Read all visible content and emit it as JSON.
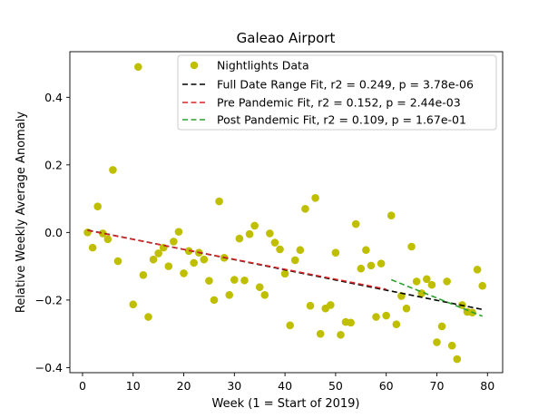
{
  "chart_data": {
    "type": "scatter",
    "title": "Galeao Airport",
    "xlabel": "Week (1 = Start of 2019)",
    "ylabel": "Relative Weekly Average Anomaly",
    "xlim": [
      -2.5,
      83
    ],
    "ylim": [
      -0.415,
      0.535
    ],
    "xticks": [
      0,
      10,
      20,
      30,
      40,
      50,
      60,
      70,
      80
    ],
    "yticks": [
      -0.4,
      -0.2,
      0.0,
      0.2,
      0.4
    ],
    "xtick_labels": [
      "0",
      "10",
      "20",
      "30",
      "40",
      "50",
      "60",
      "70",
      "80"
    ],
    "ytick_labels": [
      "−0.4",
      "−0.2",
      "0.0",
      "0.2",
      "0.4"
    ],
    "grid": false,
    "legend_position": "top-right",
    "scatter": {
      "name": "Nightlights Data",
      "color": "#bfbf00",
      "points": [
        [
          1,
          0.0
        ],
        [
          2,
          -0.045
        ],
        [
          3,
          0.077
        ],
        [
          4,
          -0.003
        ],
        [
          5,
          -0.02
        ],
        [
          6,
          0.185
        ],
        [
          7,
          -0.085
        ],
        [
          10,
          -0.213
        ],
        [
          11,
          0.49
        ],
        [
          12,
          -0.126
        ],
        [
          13,
          -0.25
        ],
        [
          14,
          -0.08
        ],
        [
          15,
          -0.062
        ],
        [
          16,
          -0.045
        ],
        [
          17,
          -0.1
        ],
        [
          18,
          -0.027
        ],
        [
          19,
          0.002
        ],
        [
          20,
          -0.121
        ],
        [
          21,
          -0.055
        ],
        [
          22,
          -0.09
        ],
        [
          23,
          -0.06
        ],
        [
          24,
          -0.08
        ],
        [
          25,
          -0.143
        ],
        [
          26,
          -0.2
        ],
        [
          27,
          0.092
        ],
        [
          28,
          -0.075
        ],
        [
          29,
          -0.185
        ],
        [
          30,
          -0.14
        ],
        [
          31,
          -0.018
        ],
        [
          32,
          -0.142
        ],
        [
          33,
          -0.005
        ],
        [
          34,
          0.02
        ],
        [
          35,
          -0.162
        ],
        [
          36,
          -0.185
        ],
        [
          37,
          -0.003
        ],
        [
          38,
          -0.03
        ],
        [
          39,
          -0.05
        ],
        [
          40,
          -0.122
        ],
        [
          41,
          -0.275
        ],
        [
          42,
          -0.082
        ],
        [
          43,
          -0.052
        ],
        [
          44,
          0.07
        ],
        [
          45,
          -0.217
        ],
        [
          46,
          0.102
        ],
        [
          47,
          -0.3
        ],
        [
          48,
          -0.225
        ],
        [
          49,
          -0.215
        ],
        [
          50,
          -0.06
        ],
        [
          51,
          -0.303
        ],
        [
          52,
          -0.265
        ],
        [
          53,
          -0.267
        ],
        [
          54,
          0.025
        ],
        [
          55,
          -0.107
        ],
        [
          56,
          -0.052
        ],
        [
          57,
          -0.098
        ],
        [
          58,
          -0.25
        ],
        [
          59,
          -0.092
        ],
        [
          60,
          -0.246
        ],
        [
          61,
          0.05
        ],
        [
          62,
          -0.272
        ],
        [
          63,
          -0.188
        ],
        [
          64,
          -0.225
        ],
        [
          65,
          -0.042
        ],
        [
          66,
          -0.145
        ],
        [
          67,
          -0.18
        ],
        [
          68,
          -0.138
        ],
        [
          69,
          -0.155
        ],
        [
          70,
          -0.325
        ],
        [
          71,
          -0.278
        ],
        [
          72,
          -0.145
        ],
        [
          73,
          -0.335
        ],
        [
          74,
          -0.375
        ],
        [
          75,
          -0.215
        ],
        [
          76,
          -0.235
        ],
        [
          77,
          -0.237
        ],
        [
          78,
          -0.11
        ],
        [
          79,
          -0.158
        ]
      ]
    },
    "fits": [
      {
        "name": "Full Date Range Fit, r2 = 0.249, p = 3.78e-06",
        "color": "#000000",
        "x": [
          1,
          79
        ],
        "y": [
          0.007,
          -0.228
        ]
      },
      {
        "name": "Pre Pandemic Fit, r2 = 0.152, p = 2.44e-03",
        "color": "#d62728",
        "x": [
          1,
          60
        ],
        "y": [
          0.006,
          -0.168
        ]
      },
      {
        "name": "Post Pandemic Fit, r2 = 0.109, p = 1.67e-01",
        "color": "#2ca02c",
        "x": [
          61,
          79
        ],
        "y": [
          -0.14,
          -0.248
        ]
      }
    ]
  }
}
